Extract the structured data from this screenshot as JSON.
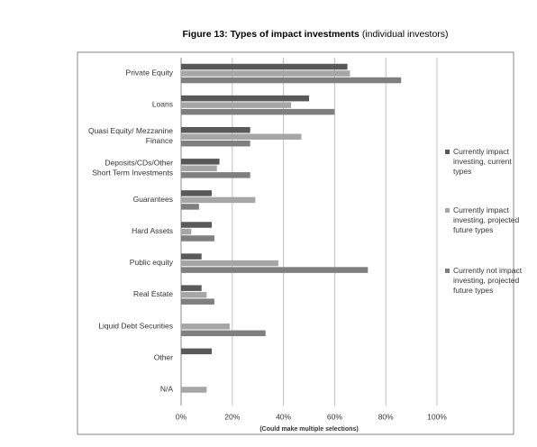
{
  "chart_data": {
    "type": "hbar",
    "title": "Figure 13: Types of impact investments",
    "subtitle": "(individual investors)",
    "xlabel": "(Could make multiple selections)",
    "categories": [
      "Private Equity",
      "Loans",
      "Quasi Equity/ Mezzanine\nFinance",
      "Deposits/CDs/Other\nShort Term Investments",
      "Guarantees",
      "Hard Assets",
      "Public equity",
      "Real Estate",
      "Liquid Debt Securities",
      "Other",
      "N/A"
    ],
    "series": [
      {
        "name": "Currently impact investing, current types",
        "color": "#595959",
        "values": [
          65,
          50,
          27,
          15,
          12,
          12,
          8,
          8,
          null,
          12,
          null
        ]
      },
      {
        "name": "Currently impact investing, projected future types",
        "color": "#a6a6a6",
        "values": [
          66,
          43,
          47,
          14,
          29,
          4,
          38,
          10,
          19,
          null,
          10
        ]
      },
      {
        "name": "Currently not impact investing, projected future types",
        "color": "#7f7f7f",
        "values": [
          86,
          60,
          27,
          27,
          7,
          13,
          73,
          13,
          33,
          null,
          null
        ]
      }
    ],
    "xlim": [
      0,
      100
    ],
    "xticks": [
      {
        "value": 0,
        "label": "0%"
      },
      {
        "value": 20,
        "label": "20%"
      },
      {
        "value": 40,
        "label": "40%"
      },
      {
        "value": 60,
        "label": "60%"
      },
      {
        "value": 80,
        "label": "80%"
      },
      {
        "value": 100,
        "label": "100%"
      }
    ],
    "grid": true
  }
}
